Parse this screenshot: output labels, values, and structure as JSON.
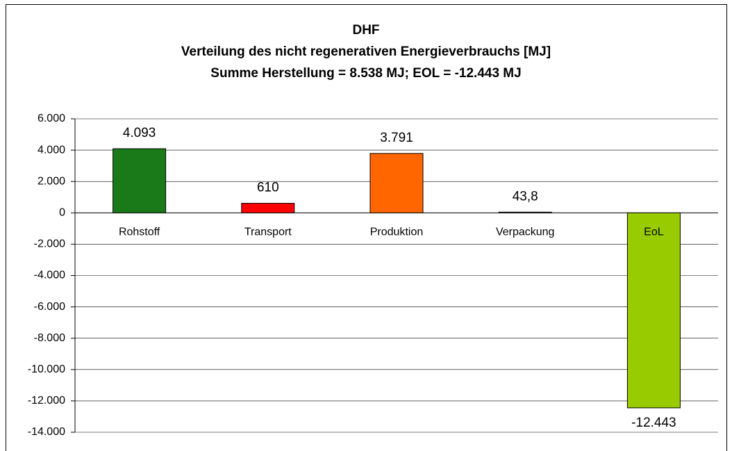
{
  "chart_data": {
    "type": "bar",
    "title": "DHF",
    "subtitle": [
      "Verteilung des nicht regenerativen Energieverbrauchs [MJ]",
      "Summe Herstellung =  8.538 MJ; EOL = -12.443 MJ"
    ],
    "categories": [
      "Rohstoff",
      "Transport",
      "Produktion",
      "Verpackung",
      "EoL"
    ],
    "values": [
      4093,
      610,
      3791,
      43.8,
      -12443
    ],
    "value_labels": [
      "4.093",
      "610",
      "3.791",
      "43,8",
      "-12.443"
    ],
    "colors": [
      "#1a7a1a",
      "#ff0000",
      "#ff6600",
      "#333333",
      "#99cc00"
    ],
    "ylim": [
      -14000,
      6000
    ],
    "yticks": [
      {
        "value": 6000,
        "label": "6.000"
      },
      {
        "value": 4000,
        "label": "4.000"
      },
      {
        "value": 2000,
        "label": "2.000"
      },
      0,
      {
        "value": -2000,
        "label": "-2.000"
      },
      {
        "value": -4000,
        "label": "-4.000"
      },
      {
        "value": -6000,
        "label": "-6.000"
      },
      {
        "value": -8000,
        "label": "-8.000"
      },
      {
        "value": -10000,
        "label": "-10.000"
      },
      {
        "value": -12000,
        "label": "-12.000"
      },
      {
        "value": -14000,
        "label": "-14.000"
      }
    ],
    "grid": true
  }
}
